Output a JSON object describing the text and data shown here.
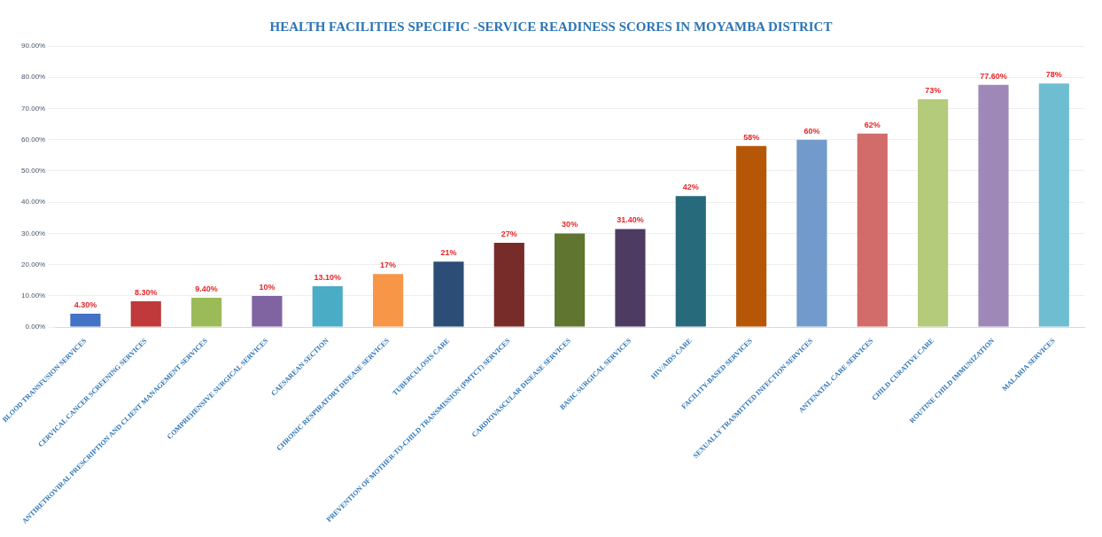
{
  "chart_data": {
    "type": "bar",
    "title": "HEALTH FACILITIES SPECIFIC -SERVICE   READINESS SCORES IN MOYAMBA DISTRICT",
    "categories": [
      "BLOOD TRANSFUSION SERVICES",
      "CERVICAL CANCER SCREENING SERVICES",
      "ANTIRETROVIRAL PRESCRIPTION AND CLIENT MANAGEMENT SERVICES",
      "COMPREHENSIVE SURGICAL SERVICES",
      "CAESAREAN SECTION",
      "CHRONIC RESPIRATORY DISEASE SERVICES",
      "TUBERCULOSIS CARE",
      "PREVENTION OF MOTHER-TO-CHILD TRANSMISSION (PMTCT) SERVICES",
      "CARDIOVASCULAR DISEASE SERVICES",
      "BASIC SURGICAL SERVICES",
      "HIV/AIDS CARE",
      "FACILITY-BASED SERVICES",
      "SEXUALLY TRASMITTED INFECTION SERVICES",
      "ANTENATAL CARE SERVICES",
      "CHILD CURATIVE CARE",
      "ROUTINE CHILD IMMUNIZATION",
      "MALARIA SERVICES"
    ],
    "values": [
      4.3,
      8.3,
      9.4,
      10,
      13.1,
      17,
      21,
      27,
      30,
      31.4,
      42,
      58,
      60,
      62,
      73,
      77.6,
      78
    ],
    "value_labels": [
      "4.30%",
      "8.30%",
      "9.40%",
      "10%",
      "13.10%",
      "17%",
      "21%",
      "27%",
      "30%",
      "31.40%",
      "42%",
      "58%",
      "60%",
      "62%",
      "73%",
      "77.60%",
      "78%"
    ],
    "colors": [
      "#4472c4",
      "#c0393b",
      "#9bbb59",
      "#8064a2",
      "#4bacc6",
      "#f79646",
      "#2c4d75",
      "#772c2a",
      "#5f7530",
      "#4d3b62",
      "#276a7c",
      "#b65708",
      "#729aca",
      "#d16c6a",
      "#b3cb7a",
      "#9d88b8",
      "#6fbdd1"
    ],
    "ylim": [
      0,
      90
    ],
    "yticks": [
      {
        "value": 0,
        "label": "0.00%"
      },
      {
        "value": 10,
        "label": "10.00%"
      },
      {
        "value": 20,
        "label": "20.00%"
      },
      {
        "value": 30,
        "label": "30.00%"
      },
      {
        "value": 40,
        "label": "40.00%"
      },
      {
        "value": 50,
        "label": "50.00%"
      },
      {
        "value": 60,
        "label": "60.00%"
      },
      {
        "value": 70,
        "label": "70.00%"
      },
      {
        "value": 80,
        "label": "80.00%"
      },
      {
        "value": 90,
        "label": "90.00%"
      }
    ],
    "grid": "y"
  }
}
